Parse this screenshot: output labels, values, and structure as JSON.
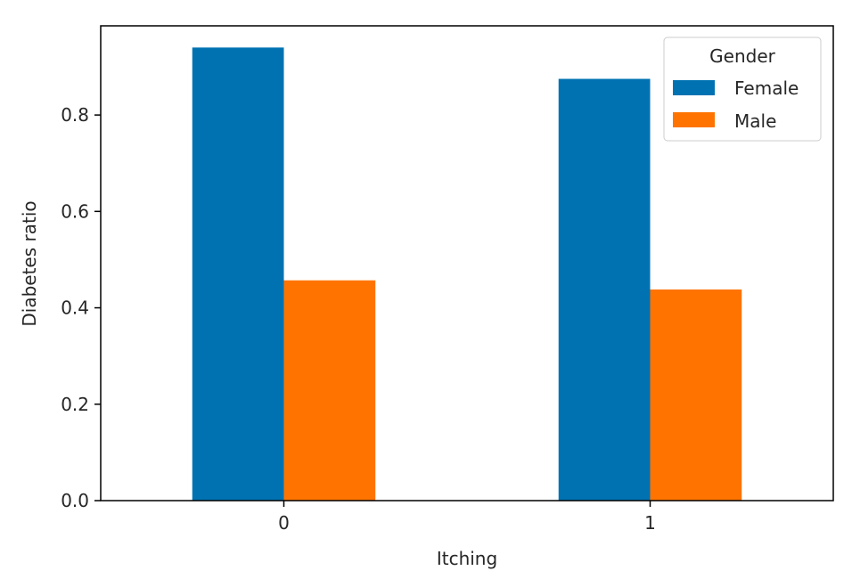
{
  "chart_data": {
    "type": "bar",
    "categories": [
      "0",
      "1"
    ],
    "series": [
      {
        "name": "Female",
        "values": [
          0.94,
          0.875
        ],
        "color": "#0072b2"
      },
      {
        "name": "Male",
        "values": [
          0.457,
          0.438
        ],
        "color": "#ff7400"
      }
    ],
    "xlabel": "Itching",
    "ylabel": "Diabetes ratio",
    "ylim": [
      0,
      0.985
    ],
    "yticks": [
      "0.0",
      "0.2",
      "0.4",
      "0.6",
      "0.8"
    ],
    "ytick_values": [
      0,
      0.2,
      0.4,
      0.6,
      0.8
    ],
    "legend": {
      "title": "Gender",
      "position": "top-right"
    },
    "grid": false
  }
}
